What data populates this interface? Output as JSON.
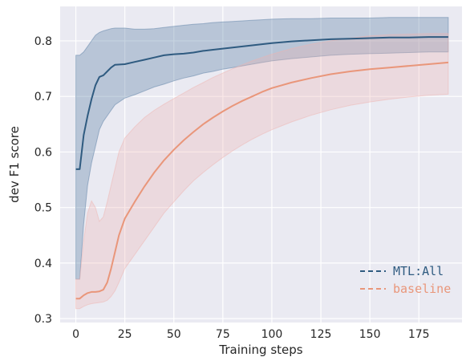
{
  "chart_data": {
    "type": "line",
    "xlabel": "Training steps",
    "ylabel": "dev F1 score",
    "xlim": [
      -8,
      197
    ],
    "ylim": [
      0.293,
      0.862
    ],
    "xticks": [
      "0",
      "25",
      "50",
      "75",
      "100",
      "125",
      "150",
      "175"
    ],
    "yticks": [
      "0.3",
      "0.4",
      "0.5",
      "0.6",
      "0.7",
      "0.8"
    ],
    "grid": true,
    "legend_position": "bottom-right",
    "series": [
      {
        "name": "MTL:All",
        "color": "#2f5b80",
        "band_color": "#5b80a5",
        "x": [
          0,
          2,
          4,
          6,
          8,
          10,
          12,
          14,
          16,
          18,
          20,
          25,
          30,
          35,
          40,
          45,
          50,
          55,
          60,
          65,
          70,
          75,
          80,
          85,
          90,
          95,
          100,
          110,
          120,
          130,
          140,
          150,
          160,
          170,
          180,
          190
        ],
        "y": [
          0.569,
          0.569,
          0.63,
          0.665,
          0.695,
          0.72,
          0.735,
          0.738,
          0.745,
          0.752,
          0.757,
          0.758,
          0.762,
          0.766,
          0.77,
          0.774,
          0.776,
          0.777,
          0.779,
          0.782,
          0.784,
          0.786,
          0.788,
          0.79,
          0.792,
          0.794,
          0.796,
          0.799,
          0.801,
          0.803,
          0.804,
          0.805,
          0.806,
          0.806,
          0.807,
          0.807
        ],
        "lower": [
          0.371,
          0.371,
          0.47,
          0.54,
          0.58,
          0.61,
          0.64,
          0.655,
          0.665,
          0.675,
          0.685,
          0.697,
          0.703,
          0.71,
          0.717,
          0.722,
          0.728,
          0.733,
          0.737,
          0.742,
          0.745,
          0.749,
          0.752,
          0.755,
          0.758,
          0.761,
          0.764,
          0.768,
          0.771,
          0.774,
          0.776,
          0.777,
          0.778,
          0.779,
          0.78,
          0.78
        ],
        "upper": [
          0.774,
          0.774,
          0.78,
          0.79,
          0.8,
          0.81,
          0.815,
          0.818,
          0.82,
          0.822,
          0.823,
          0.823,
          0.821,
          0.821,
          0.822,
          0.824,
          0.826,
          0.828,
          0.83,
          0.831,
          0.833,
          0.834,
          0.835,
          0.836,
          0.837,
          0.838,
          0.839,
          0.84,
          0.84,
          0.841,
          0.841,
          0.841,
          0.842,
          0.842,
          0.842,
          0.842
        ]
      },
      {
        "name": "baseline",
        "color": "#e9967a",
        "band_color": "#f0b3b0",
        "x": [
          0,
          2,
          4,
          6,
          8,
          10,
          12,
          14,
          16,
          18,
          20,
          22,
          25,
          30,
          35,
          40,
          45,
          50,
          55,
          60,
          65,
          70,
          75,
          80,
          85,
          90,
          95,
          100,
          110,
          120,
          130,
          140,
          150,
          160,
          170,
          180,
          190
        ],
        "y": [
          0.336,
          0.336,
          0.342,
          0.346,
          0.348,
          0.348,
          0.349,
          0.352,
          0.365,
          0.39,
          0.42,
          0.45,
          0.48,
          0.51,
          0.538,
          0.563,
          0.585,
          0.604,
          0.621,
          0.636,
          0.65,
          0.662,
          0.673,
          0.683,
          0.692,
          0.7,
          0.708,
          0.715,
          0.725,
          0.733,
          0.74,
          0.745,
          0.749,
          0.752,
          0.755,
          0.758,
          0.761
        ],
        "lower": [
          0.318,
          0.318,
          0.322,
          0.325,
          0.327,
          0.328,
          0.329,
          0.33,
          0.333,
          0.34,
          0.35,
          0.365,
          0.39,
          0.415,
          0.44,
          0.465,
          0.49,
          0.51,
          0.53,
          0.548,
          0.563,
          0.577,
          0.59,
          0.602,
          0.613,
          0.623,
          0.632,
          0.64,
          0.654,
          0.666,
          0.676,
          0.684,
          0.69,
          0.695,
          0.699,
          0.702,
          0.704
        ],
        "upper": [
          0.371,
          0.371,
          0.44,
          0.49,
          0.512,
          0.5,
          0.475,
          0.483,
          0.51,
          0.54,
          0.57,
          0.6,
          0.625,
          0.645,
          0.662,
          0.675,
          0.686,
          0.696,
          0.706,
          0.716,
          0.725,
          0.734,
          0.742,
          0.75,
          0.757,
          0.764,
          0.77,
          0.776,
          0.786,
          0.794,
          0.8,
          0.805,
          0.809,
          0.811,
          0.812,
          0.813,
          0.813
        ]
      }
    ]
  }
}
